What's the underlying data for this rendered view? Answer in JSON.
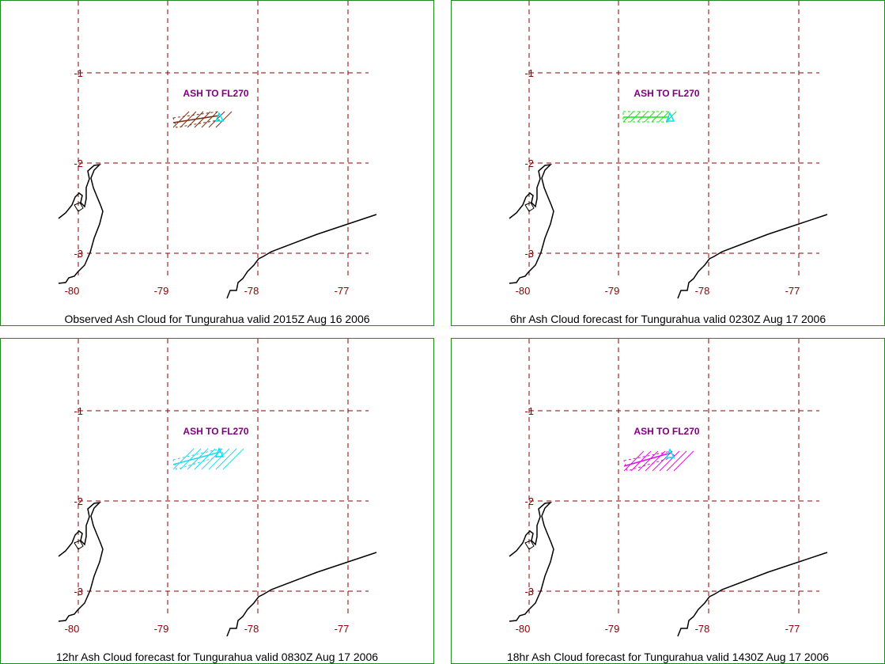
{
  "colors": {
    "border": "#1f8a1f",
    "grid": "#8b0000",
    "tick_label": "#8b0000",
    "ash_label": "#800080",
    "coast": "#000000",
    "volcano": "#00e5ee"
  },
  "axes": {
    "lon_ticks": [
      "-80",
      "-79",
      "-78",
      "-77"
    ],
    "lat_ticks": [
      "-1",
      "-2",
      "-3"
    ]
  },
  "ash_label": "ASH TO FL270",
  "panels": [
    {
      "caption": "Observed Ash Cloud for Tungurahua valid 2015Z Aug 16 2006",
      "cloud_color": "#7a2e10",
      "cloud_icon": "ash-cloud-observed"
    },
    {
      "caption": "6hr Ash Cloud forecast for Tungurahua valid 0230Z Aug 17 2006",
      "cloud_color": "#22dd22",
      "cloud_icon": "ash-cloud-forecast-6hr"
    },
    {
      "caption": "12hr Ash Cloud forecast for Tungurahua valid 0830Z Aug 17 2006",
      "cloud_color": "#22d8ee",
      "cloud_icon": "ash-cloud-forecast-12hr"
    },
    {
      "caption": "18hr Ash Cloud forecast for Tungurahua valid 1430Z Aug 17 2006",
      "cloud_color": "#e010e0",
      "cloud_icon": "ash-cloud-forecast-18hr"
    }
  ]
}
